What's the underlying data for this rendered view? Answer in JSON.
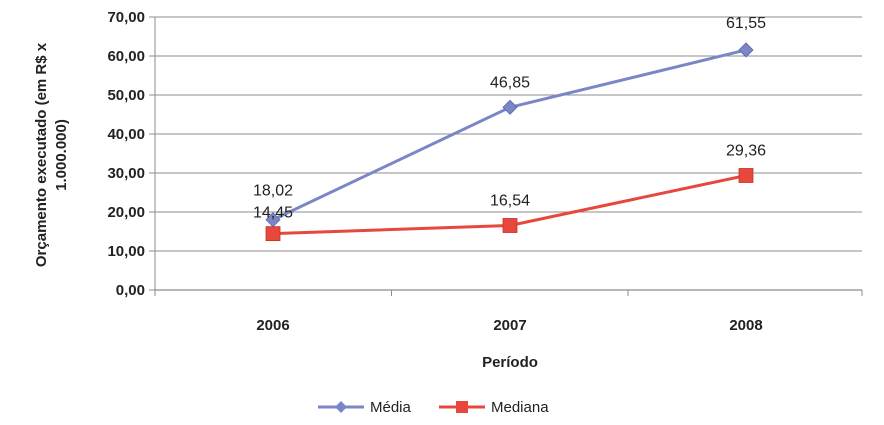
{
  "chart_data": {
    "type": "line",
    "categories": [
      "2006",
      "2007",
      "2008"
    ],
    "series": [
      {
        "name": "Média",
        "values": [
          18.02,
          46.85,
          61.55
        ],
        "labels": [
          "18,02",
          "46,85",
          "61,55"
        ],
        "color": "#7b86c6",
        "marker": "diamond"
      },
      {
        "name": "Mediana",
        "values": [
          14.45,
          16.54,
          29.36
        ],
        "labels": [
          "14,45",
          "16,54",
          "29,36"
        ],
        "color": "#e8473e",
        "marker": "square"
      }
    ],
    "title": "",
    "xlabel": "Período",
    "ylabel_lines": [
      "Orçamento executado (em R$ x",
      "1.000.000)"
    ],
    "ylim": [
      0,
      70
    ],
    "yticks": [
      0,
      10,
      20,
      30,
      40,
      50,
      60,
      70
    ],
    "ytick_labels": [
      "0,00",
      "10,00",
      "20,00",
      "30,00",
      "40,00",
      "50,00",
      "60,00",
      "70,00"
    ],
    "grid": true,
    "legend_position": "bottom"
  }
}
